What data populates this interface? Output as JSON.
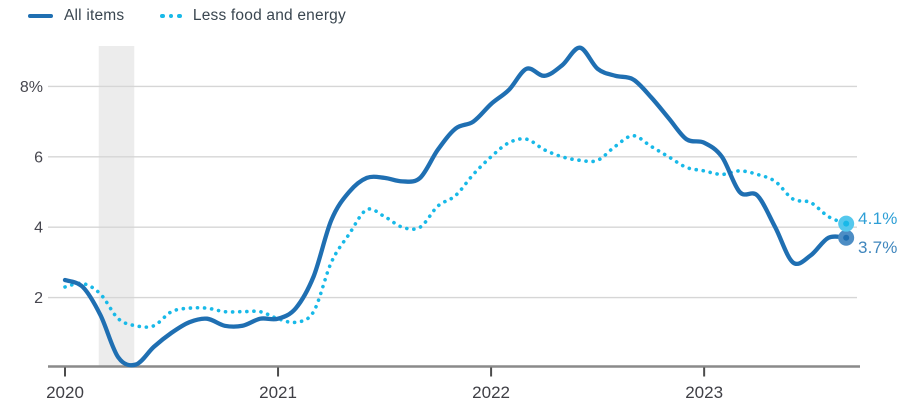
{
  "chart_data": {
    "type": "line",
    "x": [
      "2020-01",
      "2020-02",
      "2020-03",
      "2020-04",
      "2020-05",
      "2020-06",
      "2020-07",
      "2020-08",
      "2020-09",
      "2020-10",
      "2020-11",
      "2020-12",
      "2021-01",
      "2021-02",
      "2021-03",
      "2021-04",
      "2021-05",
      "2021-06",
      "2021-07",
      "2021-08",
      "2021-09",
      "2021-10",
      "2021-11",
      "2021-12",
      "2022-01",
      "2022-02",
      "2022-03",
      "2022-04",
      "2022-05",
      "2022-06",
      "2022-07",
      "2022-08",
      "2022-09",
      "2022-10",
      "2022-11",
      "2022-12",
      "2023-01",
      "2023-02",
      "2023-03",
      "2023-04",
      "2023-05",
      "2023-06",
      "2023-07",
      "2023-08",
      "2023-09"
    ],
    "series": [
      {
        "name": "All items",
        "style": "solid",
        "color": "#1f6fb2",
        "end_dot_color": "#4d8dc4",
        "end_label_color": "#3f86bd",
        "end_value_label": "3.7%",
        "values": [
          2.5,
          2.3,
          1.5,
          0.3,
          0.1,
          0.6,
          1.0,
          1.3,
          1.4,
          1.2,
          1.2,
          1.4,
          1.4,
          1.7,
          2.6,
          4.2,
          5.0,
          5.4,
          5.4,
          5.3,
          5.4,
          6.2,
          6.8,
          7.0,
          7.5,
          7.9,
          8.5,
          8.3,
          8.6,
          9.1,
          8.5,
          8.3,
          8.2,
          7.7,
          7.1,
          6.5,
          6.4,
          6.0,
          5.0,
          4.9,
          4.0,
          3.0,
          3.2,
          3.7,
          3.7
        ]
      },
      {
        "name": "Less food and energy",
        "style": "dotted",
        "color": "#18b9e8",
        "end_dot_color": "#55c8ed",
        "end_label_color": "#2e9fd6",
        "end_value_label": "4.1%",
        "values": [
          2.3,
          2.4,
          2.1,
          1.4,
          1.2,
          1.2,
          1.6,
          1.7,
          1.7,
          1.6,
          1.6,
          1.6,
          1.4,
          1.3,
          1.6,
          3.0,
          3.8,
          4.5,
          4.3,
          4.0,
          4.0,
          4.6,
          4.9,
          5.5,
          6.0,
          6.4,
          6.5,
          6.2,
          6.0,
          5.9,
          5.9,
          6.3,
          6.6,
          6.3,
          6.0,
          5.7,
          5.6,
          5.5,
          5.6,
          5.5,
          5.3,
          4.8,
          4.7,
          4.3,
          4.1
        ]
      }
    ],
    "y_ticks": [
      {
        "value": 2,
        "label": "2"
      },
      {
        "value": 4,
        "label": "4"
      },
      {
        "value": 6,
        "label": "6"
      },
      {
        "value": 8,
        "label": "8%"
      }
    ],
    "x_ticks": [
      {
        "month": "2020-01",
        "label": "2020"
      },
      {
        "month": "2021-01",
        "label": "2021"
      },
      {
        "month": "2022-01",
        "label": "2022"
      },
      {
        "month": "2023-01",
        "label": "2023"
      }
    ],
    "ylim": [
      0,
      9.2
    ],
    "grid": true,
    "legend_position": "top-left",
    "shaded_band": {
      "from": "2020-02",
      "to": "2020-04",
      "color": "#ececec"
    }
  },
  "colors": {
    "grid": "#d6d6d6",
    "axis": "#8a8a8a",
    "tick": "#4c4c4c",
    "background": "#ffffff"
  }
}
